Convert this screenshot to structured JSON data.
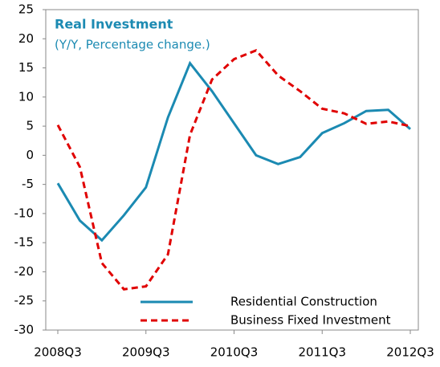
{
  "chart_data": {
    "type": "line",
    "title": "Real Investment",
    "subtitle": "(Y/Y, Percentage change.)",
    "categories": [
      "2008Q3",
      null,
      null,
      null,
      "2009Q3",
      null,
      null,
      null,
      "2010Q3",
      null,
      null,
      null,
      "2011Q3",
      null,
      null,
      null,
      "2012Q3"
    ],
    "series": [
      {
        "name": "Residential Construction",
        "color": "#1b8ab2",
        "dash": false,
        "values": [
          -4.8,
          -11.2,
          -14.6,
          -10.3,
          -5.5,
          6.5,
          15.8,
          11,
          5.5,
          0,
          -1.5,
          -0.3,
          3.8,
          5.5,
          7.6,
          7.8,
          4.5
        ]
      },
      {
        "name": "Business Fixed Investment",
        "color": "#e00000",
        "dash": true,
        "values": [
          5.2,
          -2,
          -18.5,
          -23,
          -22.5,
          -17,
          3.5,
          13,
          16.5,
          18,
          13.7,
          11,
          8,
          7.2,
          5.4,
          5.8,
          5
        ]
      }
    ],
    "ylim": [
      -30,
      25
    ],
    "yticks": [
      -30,
      -25,
      -20,
      -15,
      -10,
      -5,
      0,
      5,
      10,
      15,
      20,
      25
    ],
    "legend": "lower right"
  }
}
